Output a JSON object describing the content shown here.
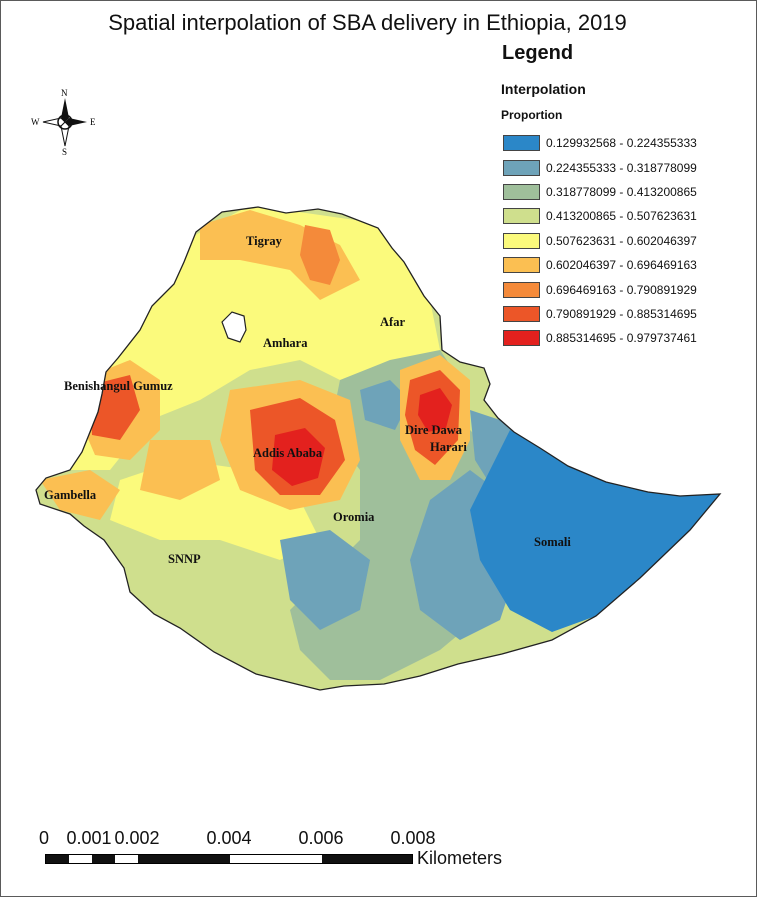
{
  "title": "Spatial interpolation of SBA delivery in Ethiopia, 2019",
  "legend": {
    "title": "Legend",
    "layer": "Interpolation",
    "field": "Proportion",
    "classes": [
      {
        "label": "0.129932568 - 0.224355333",
        "color": "#2b87c8"
      },
      {
        "label": "0.224355333 - 0.318778099",
        "color": "#6ea3b9"
      },
      {
        "label": "0.318778099 - 0.413200865",
        "color": "#9fbf9b"
      },
      {
        "label": "0.413200865 - 0.507623631",
        "color": "#cfdf8d"
      },
      {
        "label": "0.507623631 - 0.602046397",
        "color": "#fbfa7c"
      },
      {
        "label": "0.602046397 - 0.696469163",
        "color": "#fbbf52"
      },
      {
        "label": "0.696469163 - 0.790891929",
        "color": "#f48a3a"
      },
      {
        "label": "0.790891929 - 0.885314695",
        "color": "#ec5628"
      },
      {
        "label": "0.885314695 - 0.979737461",
        "color": "#e3211e"
      }
    ]
  },
  "north_arrow": {
    "n": "N",
    "s": "S",
    "e": "E",
    "w": "W"
  },
  "regions": {
    "tigray": "Tigray",
    "afar": "Afar",
    "amhara": "Amhara",
    "benishangul": "Benishangul Gumuz",
    "dire_dawa": "Dire Dawa",
    "harari": "Harari",
    "addis": "Addis Ababa",
    "gambella": "Gambella",
    "oromia": "Oromia",
    "snnp": "SNNP",
    "somali": "Somali"
  },
  "scale_bar": {
    "ticks": [
      "0",
      "0.001",
      "0.002",
      "0.004",
      "0.006",
      "0.008"
    ],
    "units": "Kilometers"
  }
}
